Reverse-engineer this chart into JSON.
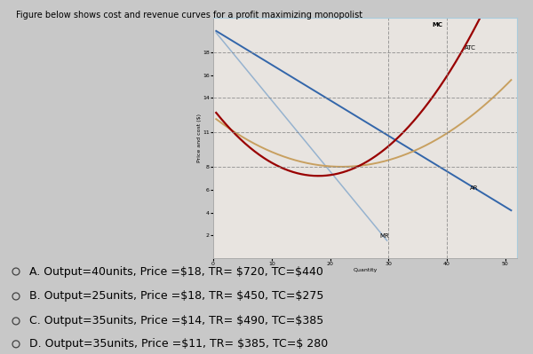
{
  "title": "Figure below shows cost and revenue curves for a profit maximizing monopolist",
  "ylabel": "Price and cost ($)",
  "xlabel": "Quantity",
  "xlim": [
    0,
    52
  ],
  "ylim": [
    0,
    21
  ],
  "xticks": [
    0,
    10,
    20,
    30,
    40,
    50
  ],
  "yticks": [
    2,
    4,
    6,
    8,
    11,
    14,
    16,
    18
  ],
  "graph_bg": "#e8e4e0",
  "page_bg": "#c8c8c8",
  "options": [
    "A. Output=40units, Price =$18, TR= $720, TC=$440",
    "B. Output=25units, Price =$18, TR= $450, TC=$275",
    "C. Output=35units, Price =$14, TR= $490, TC=$385",
    "D. Output=35units, Price =$11, TR= $385, TC=$ 280"
  ],
  "mc_color": "#990000",
  "atc_color": "#c8a060",
  "ar_color": "#3366aa",
  "mr_color": "#88aacc",
  "label_fontsize": 5.0,
  "tick_fontsize": 4.5,
  "axis_label_fontsize": 4.5
}
